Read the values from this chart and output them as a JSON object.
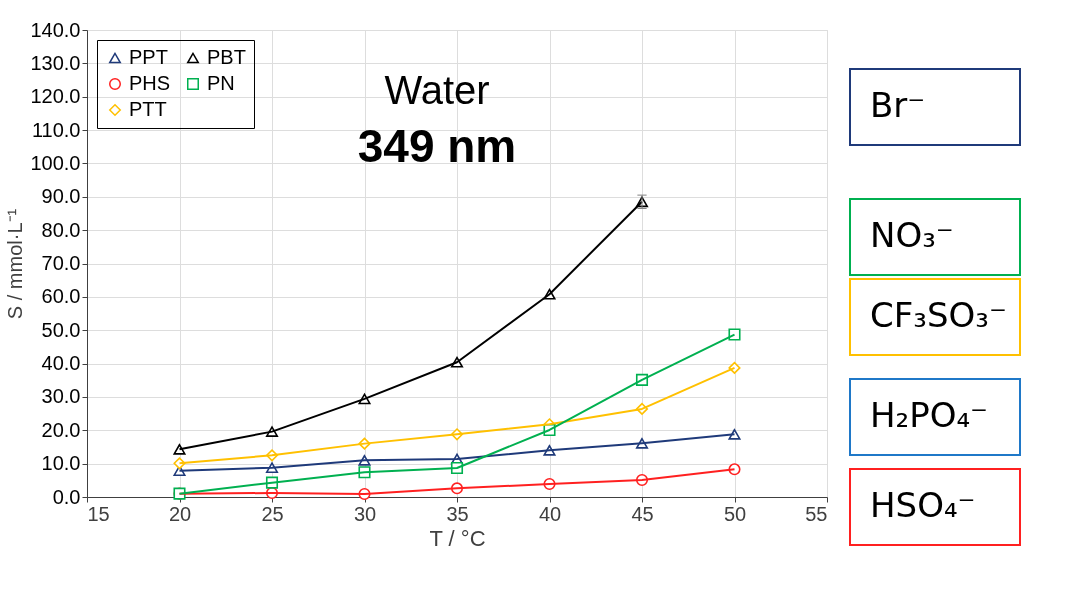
{
  "chart_data": {
    "type": "line",
    "title": "Water",
    "subtitle": "349 nm",
    "xlabel": "T / °C",
    "ylabel": "S / mmol·L⁻¹",
    "x": [
      20,
      25,
      30,
      35,
      40,
      45,
      50
    ],
    "series": [
      {
        "name": "PPT",
        "color": "#1f3a7a",
        "marker": "triangle",
        "values": [
          7.9,
          8.8,
          11.0,
          11.4,
          14.0,
          16.1,
          18.8
        ]
      },
      {
        "name": "PHS",
        "color": "#ff2020",
        "marker": "circle",
        "values": [
          1.0,
          1.2,
          0.9,
          2.6,
          3.9,
          5.1,
          8.3
        ]
      },
      {
        "name": "PTT",
        "color": "#ffc000",
        "marker": "diamond",
        "values": [
          10.1,
          12.5,
          16.0,
          18.8,
          21.8,
          26.4,
          38.7
        ]
      },
      {
        "name": "PBT",
        "color": "#000000",
        "marker": "triangle",
        "values": [
          14.3,
          19.6,
          29.4,
          40.4,
          60.8,
          88.5,
          null
        ],
        "errors": [
          null,
          null,
          null,
          null,
          null,
          2,
          null
        ]
      },
      {
        "name": "PN",
        "color": "#00b050",
        "marker": "square",
        "values": [
          1.0,
          4.3,
          7.4,
          8.7,
          20.1,
          35.1,
          48.7
        ]
      }
    ],
    "xlim": [
      15,
      55
    ],
    "xticks": [
      15,
      20,
      25,
      30,
      35,
      40,
      45,
      50,
      55
    ],
    "ylim": [
      0,
      140
    ],
    "yticks": [
      {
        "value": 0,
        "label": "0.0"
      },
      {
        "value": 10,
        "label": "10.0"
      },
      {
        "value": 20,
        "label": "20.0"
      },
      {
        "value": 30,
        "label": "30.0"
      },
      {
        "value": 40,
        "label": "40.0"
      },
      {
        "value": 50,
        "label": "50.0"
      },
      {
        "value": 60,
        "label": "60.0"
      },
      {
        "value": 70,
        "label": "70.0"
      },
      {
        "value": 80,
        "label": "80.0"
      },
      {
        "value": 90,
        "label": "90.0"
      },
      {
        "value": 100,
        "label": "100.0"
      },
      {
        "value": 110,
        "label": "110.0"
      },
      {
        "value": 120,
        "label": "120.0"
      },
      {
        "value": 130,
        "label": "130.0"
      },
      {
        "value": 140,
        "label": "140.0"
      }
    ],
    "grid": true,
    "legend": "top left",
    "line_style": "solid",
    "annotations": [
      "Br⁻",
      "NO₃⁻",
      "CF₃SO₃⁻",
      "H₂PO₄⁻",
      "HSO₄⁻"
    ]
  }
}
